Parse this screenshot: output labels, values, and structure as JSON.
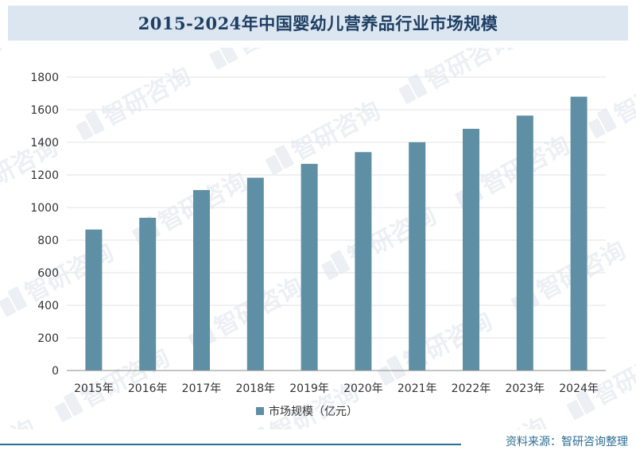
{
  "title": "2015-2024年中国婴幼儿营养品行业市场规模",
  "source": "资料来源：智研咨询整理",
  "watermark": "智研咨询",
  "colors": {
    "bar": "#5f8fa5",
    "title_bg": "#dbe6f0",
    "title_text": "#1e3f63",
    "axis": "#8a8a8a",
    "grid": "#e3e3e3",
    "source": "#2b6c91"
  },
  "chart_data": {
    "type": "bar",
    "categories": [
      "2015年",
      "2016年",
      "2017年",
      "2018年",
      "2019年",
      "2020年",
      "2021年",
      "2022年",
      "2023年",
      "2024年"
    ],
    "series": [
      {
        "name": "市场规模（亿元）",
        "values": [
          865,
          937,
          1107,
          1183,
          1268,
          1340,
          1401,
          1483,
          1564,
          1680
        ]
      }
    ],
    "title": "2015-2024年中国婴幼儿营养品行业市场规模",
    "xlabel": "",
    "ylabel": "",
    "ylim": [
      0,
      1800
    ],
    "yticks": [
      0,
      200,
      400,
      600,
      800,
      1000,
      1200,
      1400,
      1600,
      1800
    ],
    "grid": true,
    "legend_position": "bottom"
  }
}
